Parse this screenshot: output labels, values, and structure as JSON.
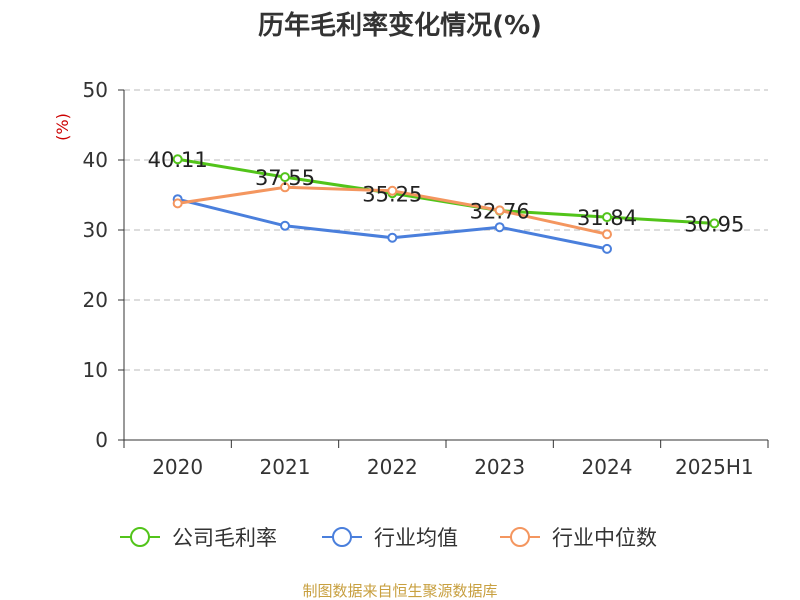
{
  "chart_data": {
    "type": "line",
    "title": "历年毛利率变化情况(%)",
    "ylabel": "(%)",
    "categories": [
      "2020",
      "2021",
      "2022",
      "2023",
      "2024",
      "2025H1"
    ],
    "ylim": [
      0,
      50
    ],
    "yticks": [
      0,
      10,
      20,
      30,
      40,
      50
    ],
    "grid": true,
    "legend_position": "bottom",
    "series": [
      {
        "name": "公司毛利率",
        "color": "#52c41a",
        "values": [
          40.11,
          37.55,
          35.25,
          32.76,
          31.84,
          30.95
        ],
        "show_labels": true
      },
      {
        "name": "行业均值",
        "color": "#4a7fdc",
        "values": [
          34.4,
          30.6,
          28.9,
          30.4,
          27.3,
          null
        ],
        "show_labels": false
      },
      {
        "name": "行业中位数",
        "color": "#f4965f",
        "values": [
          33.8,
          36.1,
          35.6,
          32.8,
          29.4,
          null
        ],
        "show_labels": false
      }
    ],
    "data_labels": [
      "40.11",
      "37.55",
      "35.25",
      "32.76",
      "31.84",
      "30.95"
    ]
  },
  "source": "制图数据来自恒生聚源数据库",
  "colors": {
    "title": "#333333",
    "ylabel": "#cc0000",
    "source": "#c8a040",
    "grid": "#bbbbbb",
    "axis": "#333333"
  }
}
